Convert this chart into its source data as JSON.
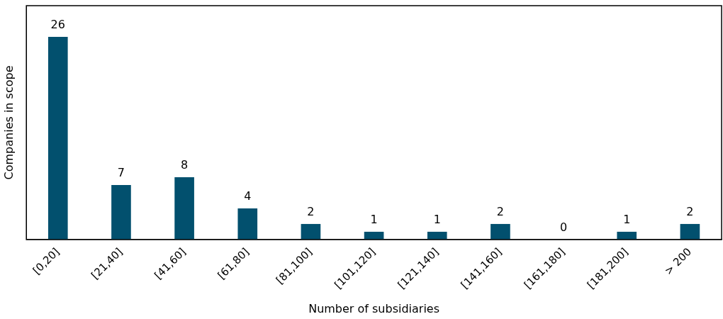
{
  "chart_data": {
    "type": "bar",
    "xlabel": "Number of subsidiaries",
    "ylabel": "Companies in scope",
    "categories": [
      "[0,20]",
      "[21,40]",
      "[41,60]",
      "[61,80]",
      "[81,100]",
      "[101,120]",
      "[121,140]",
      "[141,160]",
      "[161,180]",
      "[181,200]",
      "> 200"
    ],
    "values": [
      26,
      7,
      8,
      4,
      2,
      1,
      1,
      2,
      0,
      1,
      2
    ],
    "color": "#02506e",
    "ylim": [
      0,
      30
    ],
    "data_labels": true,
    "tick_labels": "x",
    "grid": false,
    "legend": false
  }
}
